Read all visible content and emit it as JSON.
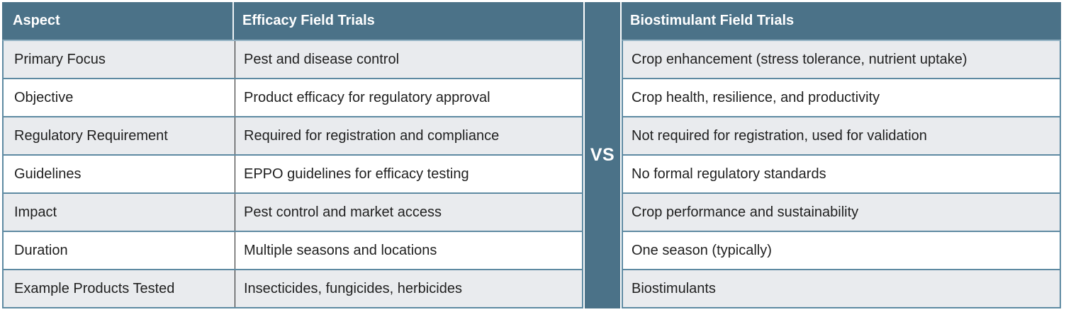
{
  "divider": {
    "label": "VS"
  },
  "left_table": {
    "headers": [
      "Aspect",
      "Efficacy Field Trials"
    ],
    "rows": [
      {
        "aspect": "Primary Focus",
        "value": "Pest and disease control"
      },
      {
        "aspect": "Objective",
        "value": "Product efficacy for regulatory approval"
      },
      {
        "aspect": "Regulatory Requirement",
        "value": "Required for registration and compliance"
      },
      {
        "aspect": "Guidelines",
        "value": "EPPO guidelines for efficacy testing"
      },
      {
        "aspect": "Impact",
        "value": "Pest control and market access"
      },
      {
        "aspect": "Duration",
        "value": "Multiple seasons and locations"
      },
      {
        "aspect": "Example Products Tested",
        "value": "Insecticides, fungicides, herbicides"
      }
    ]
  },
  "right_table": {
    "header": "Biostimulant Field Trials",
    "rows": [
      "Crop enhancement (stress tolerance, nutrient uptake)",
      "Crop health, resilience, and productivity",
      "Not required for registration, used for validation",
      "No formal regulatory standards",
      "Crop performance and sustainability",
      "One season (typically)",
      "Biostimulants"
    ]
  },
  "colors": {
    "header_bg": "#4B7288",
    "row_alt_bg": "#E9EBEE",
    "row_bg": "#FFFFFF",
    "row_border": "#5E8AA2",
    "column_divider": "#1C1C1C",
    "header_text": "#FFFFFF",
    "body_text": "#1F1F1F"
  },
  "chart_data": {
    "type": "table",
    "columns": [
      "Aspect",
      "Efficacy Field Trials",
      "Biostimulant Field Trials"
    ],
    "rows": [
      [
        "Primary Focus",
        "Pest and disease control",
        "Crop enhancement (stress tolerance, nutrient uptake)"
      ],
      [
        "Objective",
        "Product efficacy for regulatory approval",
        "Crop health, resilience, and productivity"
      ],
      [
        "Regulatory Requirement",
        "Required for registration and compliance",
        "Not required for registration, used for validation"
      ],
      [
        "Guidelines",
        "EPPO guidelines for efficacy testing",
        "No formal regulatory standards"
      ],
      [
        "Impact",
        "Pest control and market access",
        "Crop performance and sustainability"
      ],
      [
        "Duration",
        "Multiple seasons and locations",
        "One season (typically)"
      ],
      [
        "Example Products Tested",
        "Insecticides, fungicides, herbicides",
        "Biostimulants"
      ]
    ],
    "layout_hints": {
      "style": "comparison",
      "divider_label": "VS",
      "zebra_striping": true,
      "grid": "horizontal-rules"
    }
  }
}
